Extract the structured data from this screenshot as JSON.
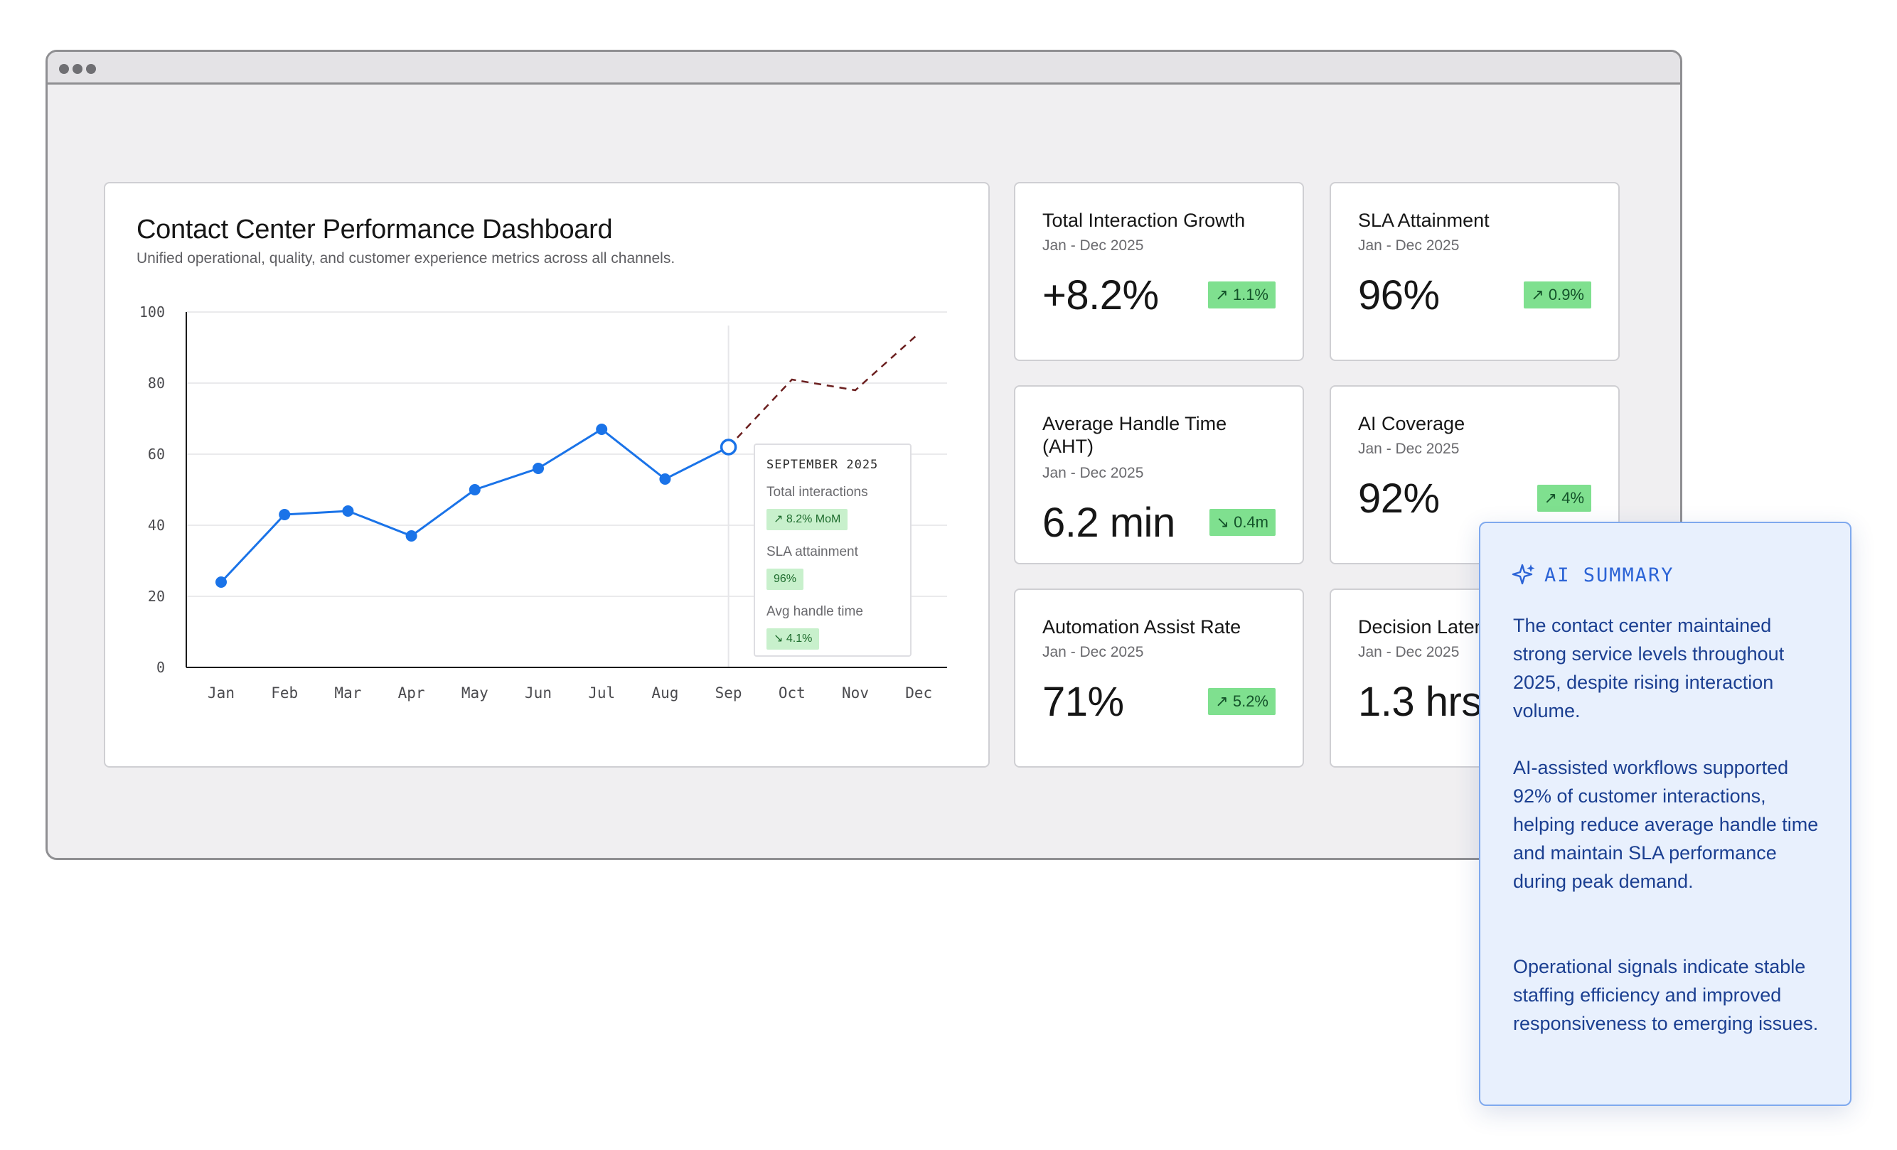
{
  "window": {
    "controls": [
      "dot",
      "dot",
      "dot"
    ]
  },
  "dashboard": {
    "title": "Contact Center Performance Dashboard",
    "subtitle": "Unified operational, quality, and customer experience metrics across all channels."
  },
  "chart_data": {
    "type": "line",
    "categories": [
      "Jan",
      "Feb",
      "Mar",
      "Apr",
      "May",
      "Jun",
      "Jul",
      "Aug",
      "Sep",
      "Oct",
      "Nov",
      "Dec"
    ],
    "ylim": [
      0,
      100
    ],
    "yticks": [
      "0",
      "20",
      "40",
      "60",
      "80",
      "100"
    ],
    "grid": true,
    "series": [
      {
        "values": [
          24,
          43,
          44,
          37,
          50,
          56,
          67,
          53,
          62,
          null,
          null,
          null
        ],
        "style": "solid",
        "color": "#1a73e8"
      },
      {
        "values": [
          null,
          null,
          null,
          null,
          null,
          null,
          null,
          null,
          62,
          81,
          78,
          94
        ],
        "style": "dashed",
        "color": "#6b1f1f"
      }
    ],
    "highlight": {
      "category": "Sep",
      "value": 62
    },
    "title": "",
    "xlabel": "",
    "ylabel": ""
  },
  "tooltip": {
    "title": "SEPTEMBER 2025",
    "items": [
      {
        "label": "Total interactions",
        "value": "↗ 8.2% MoM"
      },
      {
        "label": "SLA attainment",
        "value": "96%"
      },
      {
        "label": "Avg handle time",
        "value": "↘ 4.1%"
      }
    ]
  },
  "kpis": [
    {
      "title": "Total Interaction Growth",
      "period": "Jan - Dec 2025",
      "value": "+8.2%",
      "badge": "↗ 1.1%"
    },
    {
      "title": "SLA Attainment",
      "period": "Jan - Dec 2025",
      "value": "96%",
      "badge": "↗ 0.9%"
    },
    {
      "title": "Average Handle Time (AHT)",
      "period": "Jan - Dec 2025",
      "value": "6.2 min",
      "badge": "↘ 0.4m"
    },
    {
      "title": "AI Coverage",
      "period": "Jan - Dec 2025",
      "value": "92%",
      "badge": "↗ 4%"
    },
    {
      "title": "Automation Assist Rate",
      "period": "Jan - Dec 2025",
      "value": "71%",
      "badge": "↗ 5.2%"
    },
    {
      "title": "Decision Latency",
      "period": "Jan - Dec 2025",
      "value": "1.3 hrs",
      "badge": ""
    }
  ],
  "ai_summary": {
    "icon": "sparkle-icon",
    "title": "AI SUMMARY",
    "paragraphs": [
      "The contact center maintained strong service levels throughout 2025, despite rising interaction volume.",
      "AI-assisted workflows supported 92% of customer interactions, helping reduce average handle time and maintain SLA performance during peak demand.",
      "Operational signals indicate stable staffing efficiency and improved responsiveness to emerging issues."
    ]
  }
}
